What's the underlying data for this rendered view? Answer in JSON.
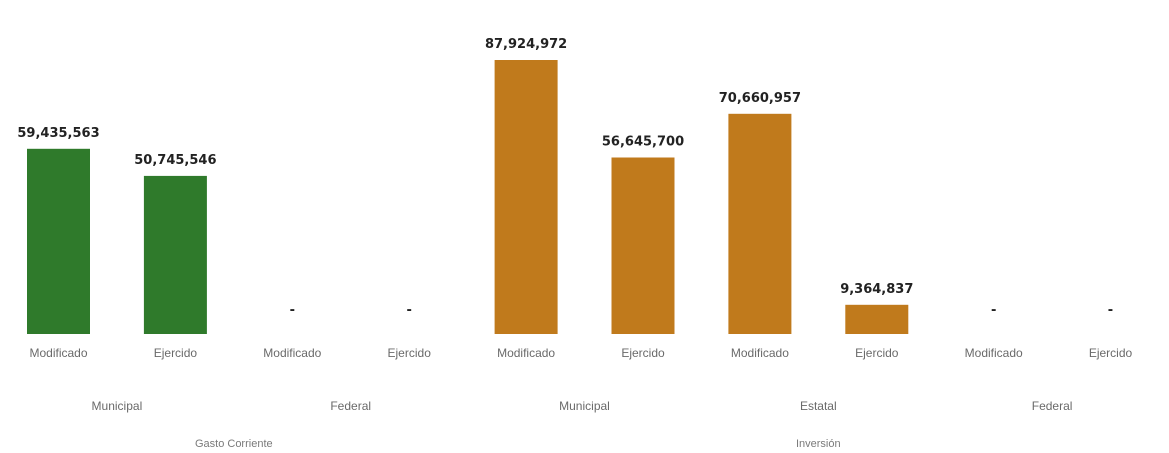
{
  "chart_data": {
    "type": "bar",
    "categories": [
      "Modificado",
      "Ejercido",
      "Modificado",
      "Ejercido",
      "Modificado",
      "Ejercido",
      "Modificado",
      "Ejercido",
      "Modificado",
      "Ejercido"
    ],
    "values": [
      59435563,
      50745546,
      0,
      0,
      87924972,
      56645700,
      70660957,
      9364837,
      0,
      0
    ],
    "data_labels": [
      "59,435,563",
      "50,745,546",
      "-",
      "-",
      "87,924,972",
      "56,645,700",
      "70,660,957",
      "9,364,837",
      "-",
      "-"
    ],
    "subgroups": [
      {
        "label": "Municipal",
        "span": [
          0,
          1
        ]
      },
      {
        "label": "Federal",
        "span": [
          2,
          3
        ]
      },
      {
        "label": "Municipal",
        "span": [
          4,
          5
        ]
      },
      {
        "label": "Estatal",
        "span": [
          6,
          7
        ]
      },
      {
        "label": "Federal",
        "span": [
          8,
          9
        ]
      }
    ],
    "groups": [
      {
        "label": "Gasto Corriente",
        "span": [
          0,
          3
        ]
      },
      {
        "label": "Inversión",
        "span": [
          4,
          9
        ]
      }
    ],
    "bar_colors": [
      "#2f7a2b",
      "#2f7a2b",
      "#2f7a2b",
      "#2f7a2b",
      "#c07a1c",
      "#c07a1c",
      "#c07a1c",
      "#c07a1c",
      "#c07a1c",
      "#c07a1c"
    ],
    "ylim": [
      0,
      87924972
    ],
    "grid": false,
    "legend": "none",
    "title": "",
    "xlabel": "",
    "ylabel": ""
  }
}
